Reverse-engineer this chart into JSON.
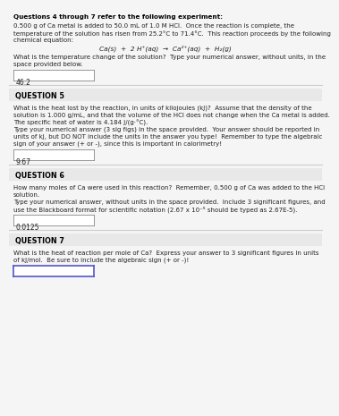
{
  "bg_color": "#f5f5f5",
  "header_bold": "Questions 4 through 7 refer to the following experiment:",
  "intro_text": "0.500 g of Ca metal is added to 50.0 mL of 1.0 M HCI.  Once the reaction is complete, the\ntemperature of the solution has risen from 25.2°C to 71.4°C.  This reaction proceeds by the following\nchemical equation:",
  "equation": "Ca(s)  +  2 H⁺(aq)  →  Ca²⁺(aq)  +  H₂(g)",
  "q4_question": "What is the temperature change of the solution?  Type your numerical answer, without units, in the\nspace provided below.",
  "q4_answer": "46.2",
  "section5_label": "QUESTION 5",
  "q5_question": "What is the heat lost by the reaction, in units of kilojoules (kJ)?  Assume that the density of the\nsolution is 1.000 g/mL, and that the volume of the HCI does not change when the Ca metal is added.\nThe specific heat of water is 4.184 J/(g·°C).\nType your numerical answer (3 sig figs) in the space provided.  Your answer should be reported in\nunits of kJ, but DO NOT include the units in the answer you type!  Remember to type the algebraic\nsign of your answer (+ or -), since this is important in calorimetry!",
  "q5_answer": "9.67",
  "section6_label": "QUESTION 6",
  "q6_question": "How many moles of Ca were used in this reaction?  Remember, 0.500 g of Ca was added to the HCI\nsolution.\nType your numerical answer, without units in the space provided.  Include 3 significant figures, and\nuse the Blackboard format for scientific notation (2.67 x 10⁻⁵ should be typed as 2.67E-5).",
  "q6_answer": "0.0125",
  "section7_label": "QUESTION 7",
  "q7_question": "What is the heat of reaction per mole of Ca?  Express your answer to 3 significant figures in units\nof kJ/mol.  Be sure to include the algebraic sign (+ or -)!",
  "q7_answer": "",
  "answer_box_color": "#ffffff",
  "answer_box_border": "#5555cc",
  "divider_color": "#cccccc",
  "section_bg": "#e8e8e8",
  "text_color": "#222222",
  "bold_color": "#000000"
}
